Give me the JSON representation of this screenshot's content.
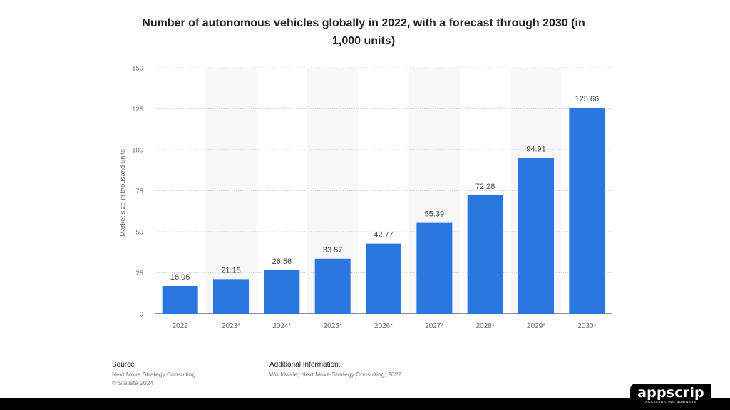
{
  "chart_data": {
    "type": "bar",
    "title": "Number of autonomous vehicles globally in 2022, with a forecast through 2030 (in 1,000 units)",
    "xlabel": "",
    "ylabel": "Market size in thousand units",
    "categories": [
      "2022",
      "2023*",
      "2024*",
      "2025*",
      "2026*",
      "2027*",
      "2028*",
      "2029*",
      "2030*"
    ],
    "values": [
      16.96,
      21.15,
      26.56,
      33.57,
      42.77,
      55.39,
      72.28,
      94.91,
      125.66
    ],
    "value_labels": [
      "16.96",
      "21.15",
      "26.56",
      "33.57",
      "42.77",
      "55.39",
      "72.28",
      "94.91",
      "125.66"
    ],
    "ylim": [
      0,
      150
    ],
    "yticks": [
      0,
      25,
      50,
      75,
      100,
      125,
      150
    ],
    "grid": true,
    "colors": {
      "bar": "#2a77e0",
      "grid": "#d6d6d6",
      "band": "#f7f7f7",
      "axis_text": "#666666",
      "value_text": "#444444"
    }
  },
  "footer": {
    "source_label": "Source",
    "source_lines": [
      "Next Move Strategy Consulting",
      "© Statista 2024"
    ],
    "additional_label": "Additional Information:",
    "additional_text": "Worldwide; Next Move Strategy Consulting; 2022"
  },
  "logo": {
    "name": "appscrip",
    "tagline": "ACCELERATING BUSINESS"
  }
}
